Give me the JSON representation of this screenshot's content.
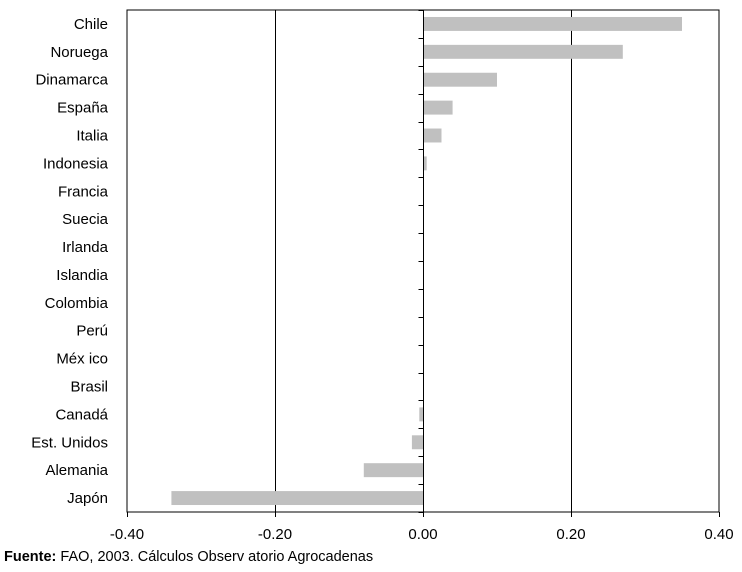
{
  "chart_data": {
    "type": "bar",
    "orientation": "horizontal",
    "categories": [
      "Chile",
      "Noruega",
      "Dinamarca",
      "España",
      "Italia",
      "Indonesia",
      "Francia",
      "Suecia",
      "Irlanda",
      "Islandia",
      "Colombia",
      "Perú",
      "Méx ico",
      "Brasil",
      "Canadá",
      "Est. Unidos",
      "Alemania",
      "Japón"
    ],
    "values": [
      0.35,
      0.27,
      0.1,
      0.04,
      0.025,
      0.005,
      0.001,
      0.001,
      0.001,
      0.001,
      0.0,
      0.0,
      0.0,
      0.0,
      -0.005,
      -0.015,
      -0.08,
      -0.34
    ],
    "xlim": [
      -0.4,
      0.4
    ],
    "xticks": [
      "-0.40",
      "-0.20",
      "0.00",
      "0.20",
      "0.40"
    ],
    "xtick_values": [
      -0.4,
      -0.2,
      0.0,
      0.2,
      0.4
    ],
    "grid": "vertical",
    "bar_color": "#c0c0c0"
  },
  "source": {
    "label": "Fuente:",
    "text": " FAO, 2003. Cálculos Observ atorio Agrocadenas"
  }
}
